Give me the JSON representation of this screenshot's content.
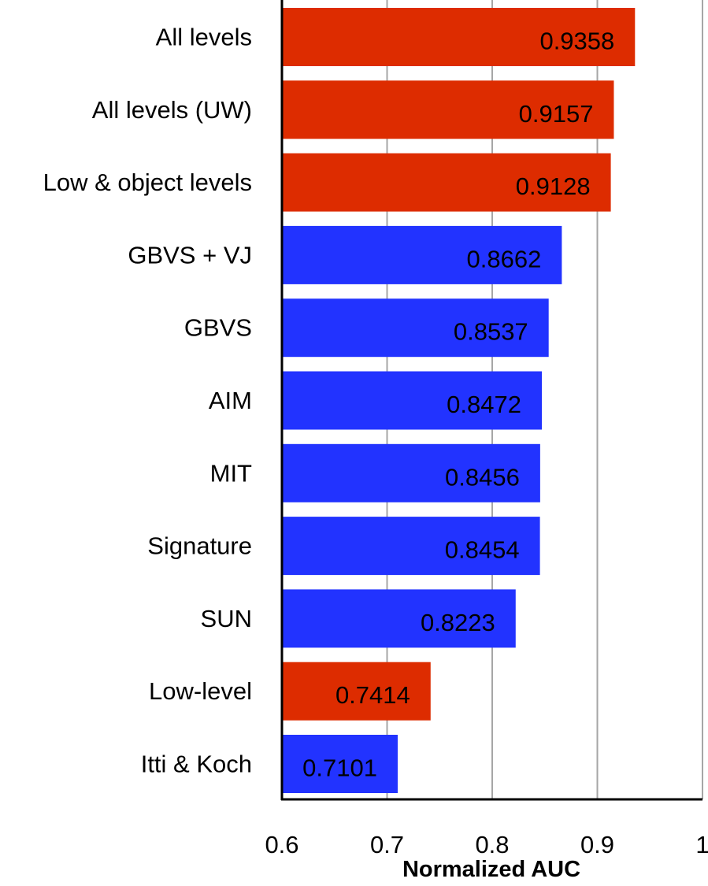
{
  "chart_data": {
    "type": "bar",
    "orientation": "horizontal",
    "categories": [
      "All levels",
      "All levels (UW)",
      "Low & object levels",
      "GBVS + VJ",
      "GBVS",
      "AIM",
      "MIT",
      "Signature",
      "SUN",
      "Low-level",
      "Itti & Koch"
    ],
    "values": [
      0.9358,
      0.9157,
      0.9128,
      0.8662,
      0.8537,
      0.8472,
      0.8456,
      0.8454,
      0.8223,
      0.7414,
      0.7101
    ],
    "value_labels": [
      "0.9358",
      "0.9157",
      "0.9128",
      "0.8662",
      "0.8537",
      "0.8472",
      "0.8456",
      "0.8454",
      "0.8223",
      "0.7414",
      "0.7101"
    ],
    "bar_colors": [
      "#dd2c00",
      "#dd2c00",
      "#dd2c00",
      "#2233ff",
      "#2233ff",
      "#2233ff",
      "#2233ff",
      "#2233ff",
      "#2233ff",
      "#dd2c00",
      "#2233ff"
    ],
    "xlabel": "Normalized AUC",
    "xlim": [
      0.6,
      1.0
    ],
    "xticks": [
      0.6,
      0.7,
      0.8,
      0.9,
      1.0
    ],
    "xtick_labels": [
      "0.6",
      "0.7",
      "0.8",
      "0.9",
      "1"
    ],
    "grid": "vertical"
  },
  "colors": {
    "red": "#dd2c00",
    "blue": "#2233ff",
    "grid": "#a6a6a6",
    "axis": "#000000"
  }
}
